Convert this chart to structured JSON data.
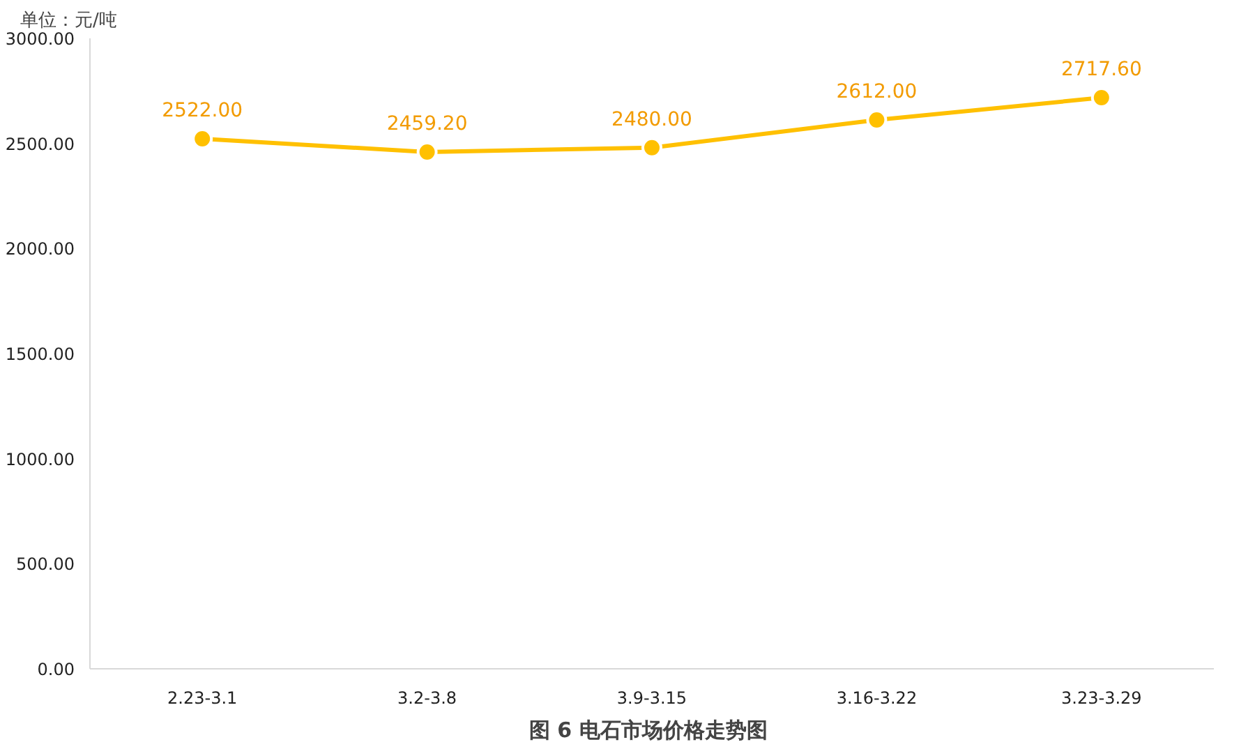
{
  "chart_data": {
    "type": "line",
    "title": "图 6  电石市场价格走势图",
    "ylabel": "单位：元/吨",
    "categories": [
      "2.23-3.1",
      "3.2-3.8",
      "3.9-3.15",
      "3.16-3.22",
      "3.23-3.29"
    ],
    "series": [
      {
        "color": "#ffc000",
        "values": [
          2522,
          2459.2,
          2480,
          2612,
          2717.6
        ],
        "value_labels": [
          "2522.00",
          "2459.20",
          "2480.00",
          "2612.00",
          "2717.60"
        ]
      }
    ],
    "ylim": [
      0,
      3000
    ],
    "yticks": [
      {
        "value": 0,
        "label": "0.00"
      },
      {
        "value": 500,
        "label": "500.00"
      },
      {
        "value": 1000,
        "label": "1000.00"
      },
      {
        "value": 1500,
        "label": "1500.00"
      },
      {
        "value": 2000,
        "label": "2000.00"
      },
      {
        "value": 2500,
        "label": "2500.00"
      },
      {
        "value": 3000,
        "label": "3000.00"
      }
    ],
    "grid": false,
    "marker": "circle",
    "line_style": "solid"
  }
}
